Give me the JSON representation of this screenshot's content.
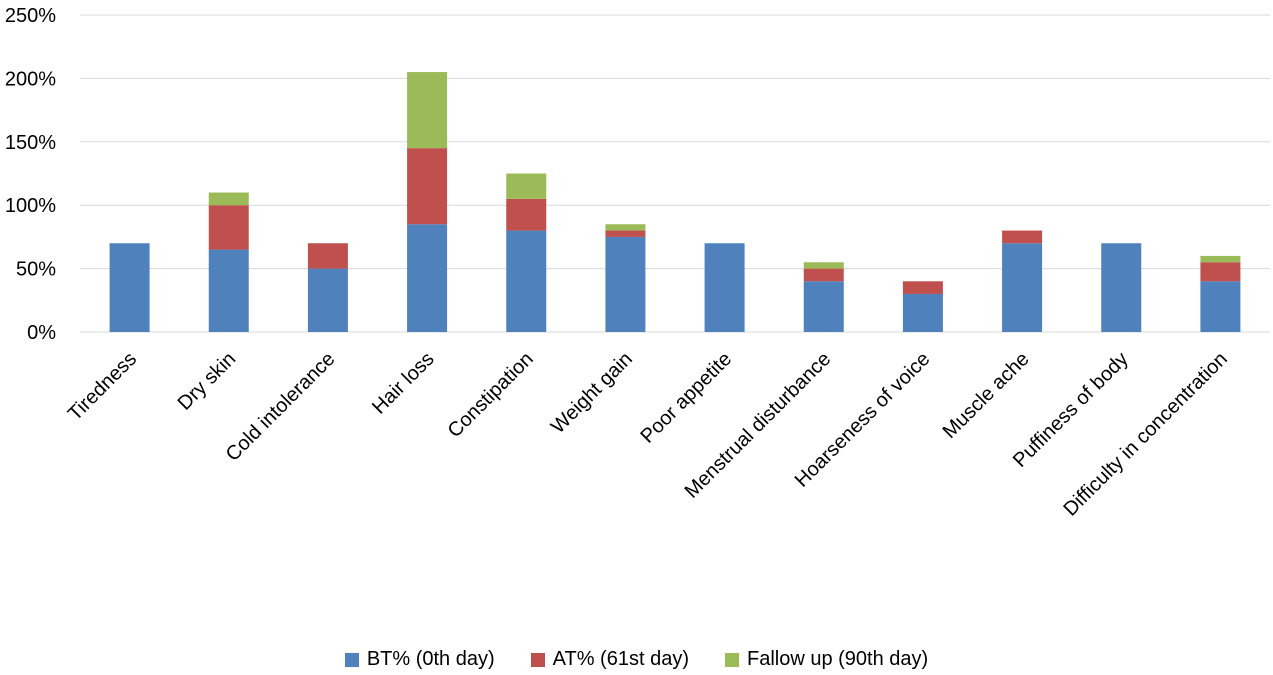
{
  "chart_data": {
    "type": "bar",
    "stacked": true,
    "title": "",
    "xlabel": "",
    "ylabel": "",
    "ylim": [
      0,
      250
    ],
    "yticks": [
      "0%",
      "50%",
      "100%",
      "150%",
      "200%",
      "250%"
    ],
    "ytick_values": [
      0,
      50,
      100,
      150,
      200,
      250
    ],
    "grid": true,
    "legend_position": "bottom",
    "categories": [
      "Tiredness",
      "Dry skin",
      "Cold intolerance",
      "Hair loss",
      "Constipation",
      "Weight gain",
      "Poor appetite",
      "Menstrual disturbance",
      "Hoarseness of voice",
      "Muscle ache",
      "Puffiness of body",
      "Difficulty in concentration"
    ],
    "series": [
      {
        "name": "BT% (0th day)",
        "color": "#4F81BD",
        "values": [
          70,
          65,
          50,
          85,
          80,
          75,
          70,
          40,
          30,
          70,
          70,
          40
        ]
      },
      {
        "name": "AT% (61st day)",
        "color": "#C0504D",
        "values": [
          0,
          35,
          20,
          60,
          25,
          5,
          0,
          10,
          10,
          10,
          0,
          15
        ]
      },
      {
        "name": "Fallow up (90th day)",
        "color": "#9BBB59",
        "values": [
          0,
          10,
          0,
          60,
          20,
          5,
          0,
          5,
          0,
          0,
          0,
          5
        ]
      }
    ]
  }
}
